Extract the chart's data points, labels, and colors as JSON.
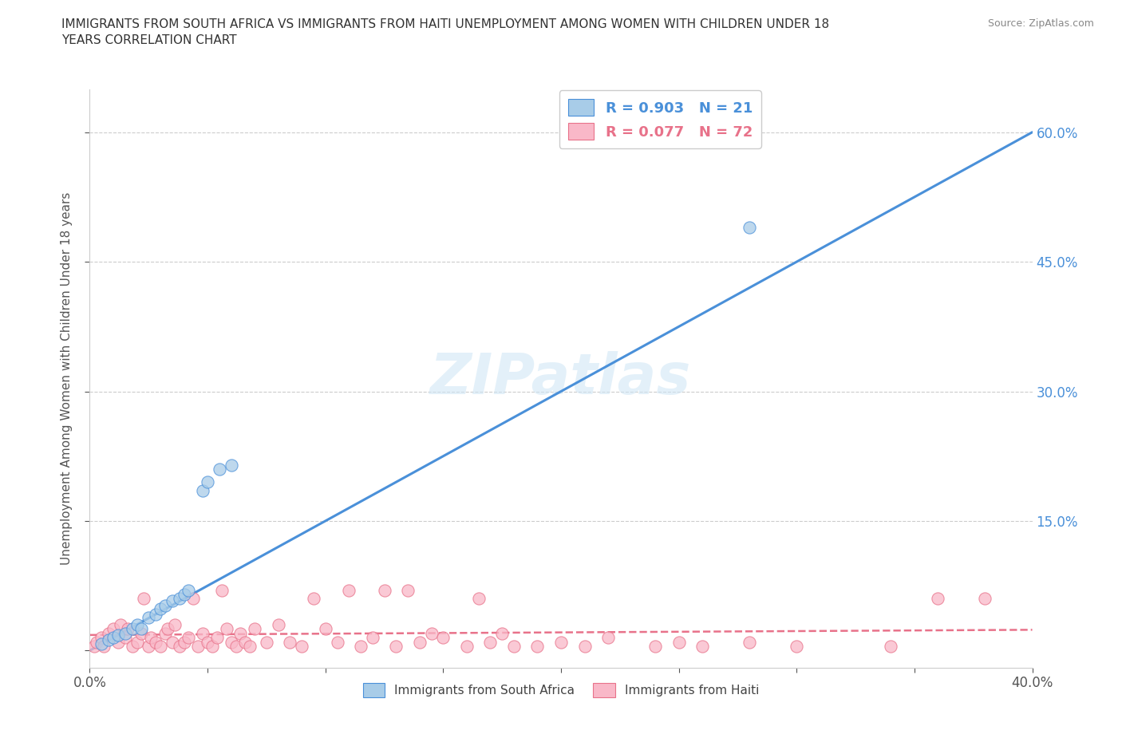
{
  "title": "IMMIGRANTS FROM SOUTH AFRICA VS IMMIGRANTS FROM HAITI UNEMPLOYMENT AMONG WOMEN WITH CHILDREN UNDER 18\nYEARS CORRELATION CHART",
  "source": "Source: ZipAtlas.com",
  "ylabel": "Unemployment Among Women with Children Under 18 years",
  "xlim": [
    0.0,
    0.4
  ],
  "ylim": [
    -0.02,
    0.65
  ],
  "xticks": [
    0.0,
    0.05,
    0.1,
    0.15,
    0.2,
    0.25,
    0.3,
    0.35,
    0.4
  ],
  "yticks": [
    0.0,
    0.15,
    0.3,
    0.45,
    0.6
  ],
  "ytick_labels": [
    "",
    "15.0%",
    "30.0%",
    "45.0%",
    "60.0%"
  ],
  "south_africa_color": "#a8cce8",
  "haiti_color": "#f9b8c8",
  "south_africa_line_color": "#4a90d9",
  "haiti_line_color": "#e8728a",
  "R_sa": 0.903,
  "N_sa": 21,
  "R_haiti": 0.077,
  "N_haiti": 72,
  "watermark": "ZIPatlas",
  "background_color": "#ffffff",
  "south_africa_x": [
    0.005,
    0.008,
    0.01,
    0.012,
    0.015,
    0.018,
    0.02,
    0.022,
    0.025,
    0.028,
    0.03,
    0.032,
    0.035,
    0.038,
    0.04,
    0.042,
    0.048,
    0.05,
    0.055,
    0.06,
    0.28
  ],
  "south_africa_y": [
    0.008,
    0.012,
    0.015,
    0.018,
    0.02,
    0.025,
    0.03,
    0.025,
    0.038,
    0.042,
    0.048,
    0.052,
    0.058,
    0.06,
    0.065,
    0.07,
    0.185,
    0.195,
    0.21,
    0.215,
    0.49
  ],
  "haiti_x": [
    0.002,
    0.003,
    0.005,
    0.006,
    0.008,
    0.01,
    0.012,
    0.013,
    0.015,
    0.016,
    0.018,
    0.02,
    0.022,
    0.023,
    0.025,
    0.026,
    0.028,
    0.03,
    0.032,
    0.033,
    0.035,
    0.036,
    0.038,
    0.04,
    0.042,
    0.044,
    0.046,
    0.048,
    0.05,
    0.052,
    0.054,
    0.056,
    0.058,
    0.06,
    0.062,
    0.064,
    0.066,
    0.068,
    0.07,
    0.075,
    0.08,
    0.085,
    0.09,
    0.095,
    0.1,
    0.105,
    0.11,
    0.115,
    0.12,
    0.125,
    0.13,
    0.135,
    0.14,
    0.145,
    0.15,
    0.16,
    0.165,
    0.17,
    0.175,
    0.18,
    0.19,
    0.2,
    0.21,
    0.22,
    0.24,
    0.25,
    0.26,
    0.28,
    0.3,
    0.34,
    0.36,
    0.38
  ],
  "haiti_y": [
    0.005,
    0.01,
    0.015,
    0.005,
    0.02,
    0.025,
    0.01,
    0.03,
    0.015,
    0.025,
    0.005,
    0.01,
    0.02,
    0.06,
    0.005,
    0.015,
    0.01,
    0.005,
    0.02,
    0.025,
    0.01,
    0.03,
    0.005,
    0.01,
    0.015,
    0.06,
    0.005,
    0.02,
    0.01,
    0.005,
    0.015,
    0.07,
    0.025,
    0.01,
    0.005,
    0.02,
    0.01,
    0.005,
    0.025,
    0.01,
    0.03,
    0.01,
    0.005,
    0.06,
    0.025,
    0.01,
    0.07,
    0.005,
    0.015,
    0.07,
    0.005,
    0.07,
    0.01,
    0.02,
    0.015,
    0.005,
    0.06,
    0.01,
    0.02,
    0.005,
    0.005,
    0.01,
    0.005,
    0.015,
    0.005,
    0.01,
    0.005,
    0.01,
    0.005,
    0.005,
    0.06,
    0.06
  ]
}
